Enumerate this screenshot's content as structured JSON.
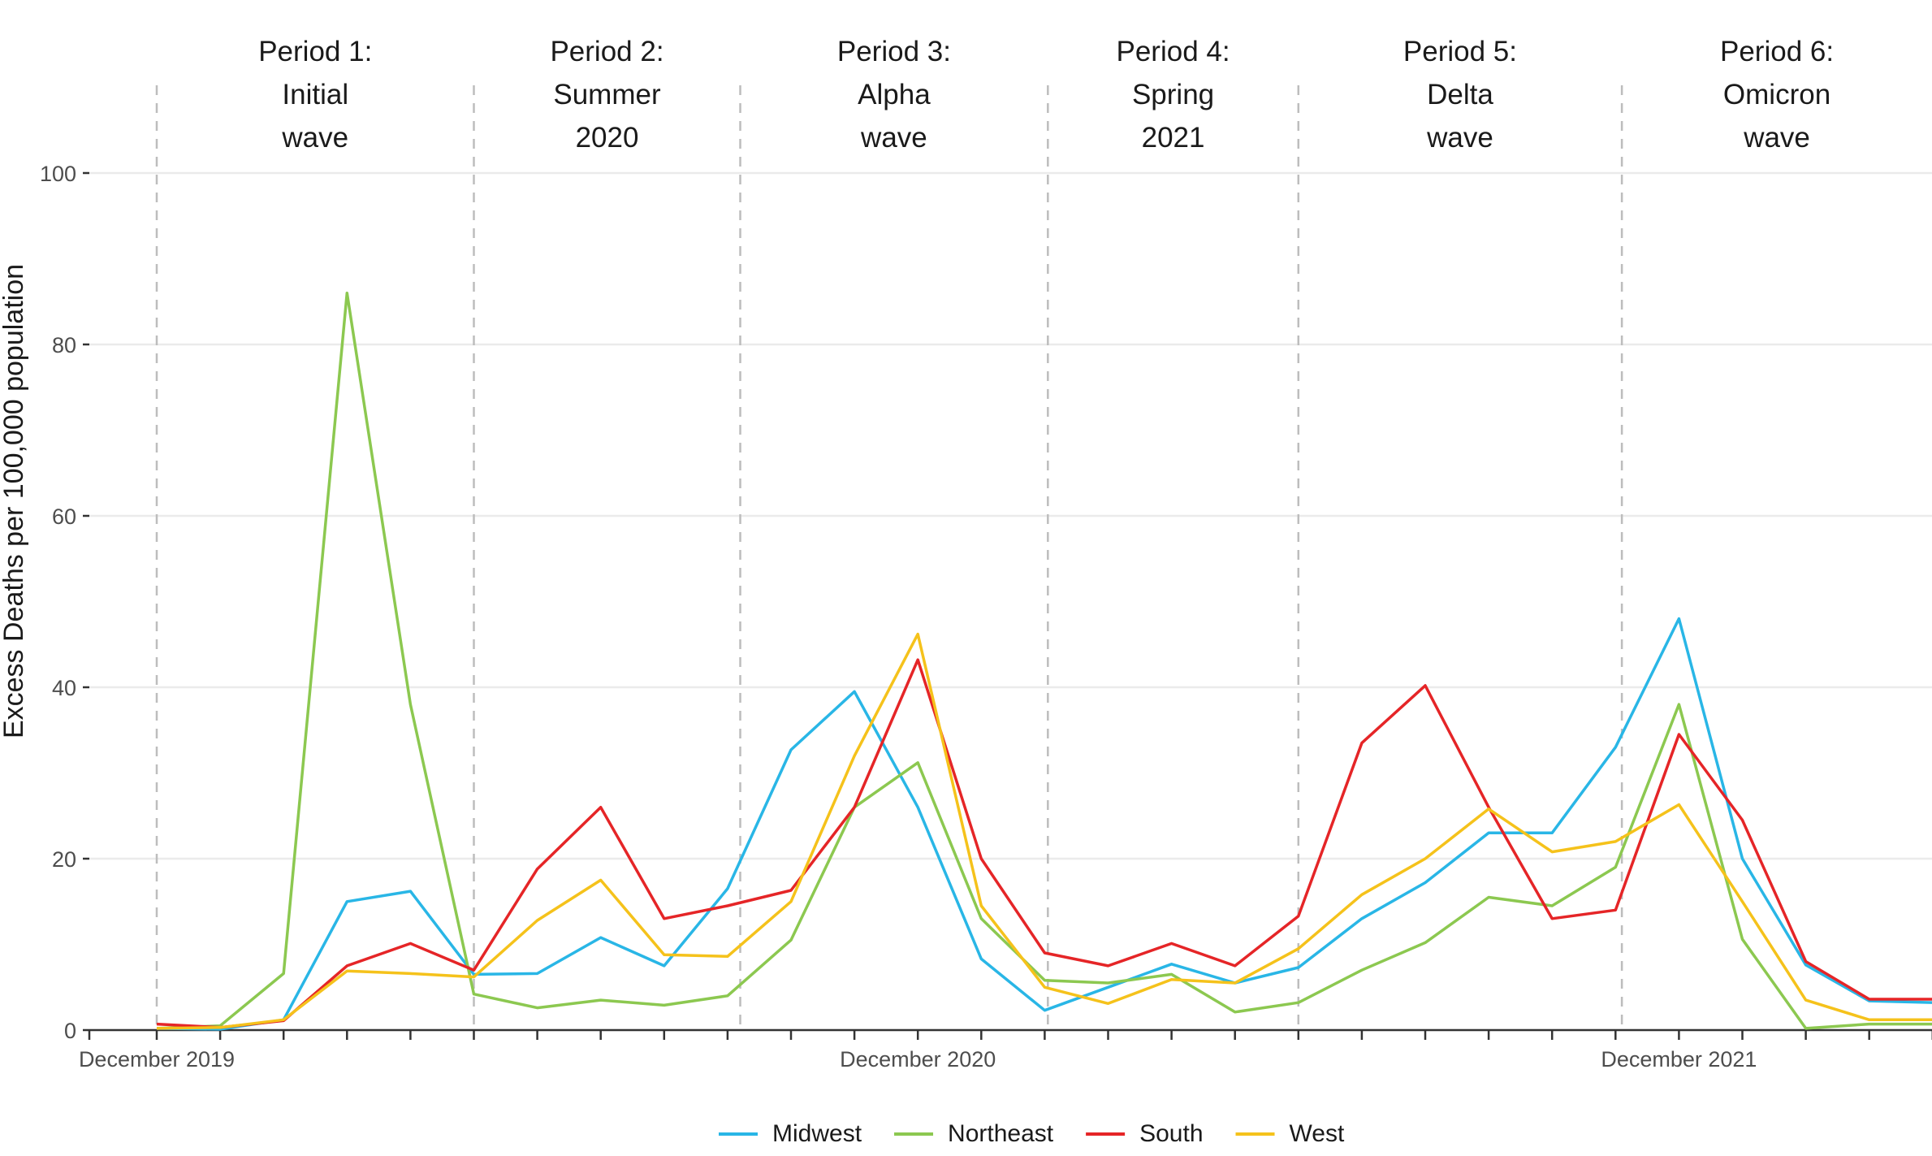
{
  "chart_data": {
    "type": "line",
    "ylabel": "Excess Deaths per 100,000 population",
    "xlabel": "",
    "ylim": [
      0,
      100
    ],
    "y_ticks": [
      0,
      20,
      40,
      60,
      80,
      100
    ],
    "x_tick_labels": [
      {
        "label": "December 2019",
        "month_index": 0
      },
      {
        "label": "December 2020",
        "month_index": 12
      },
      {
        "label": "December 2021",
        "month_index": 24
      }
    ],
    "x_minor_ticks_every_month": true,
    "months": [
      "Dec 2019",
      "Jan 2020",
      "Feb 2020",
      "Mar 2020",
      "Apr 2020",
      "May 2020",
      "Jun 2020",
      "Jul 2020",
      "Aug 2020",
      "Sep 2020",
      "Oct 2020",
      "Nov 2020",
      "Dec 2020",
      "Jan 2021",
      "Feb 2021",
      "Mar 2021",
      "Apr 2021",
      "May 2021",
      "Jun 2021",
      "Jul 2021",
      "Aug 2021",
      "Sep 2021",
      "Oct 2021",
      "Nov 2021",
      "Dec 2021",
      "Jan 2022",
      "Feb 2022",
      "Mar 2022",
      "Apr 2022"
    ],
    "periods": [
      {
        "lines": [
          "Period 1:",
          "Initial",
          "wave"
        ],
        "start_month": 0
      },
      {
        "lines": [
          "Period 2:",
          "Summer",
          "2020"
        ],
        "start_month": 5
      },
      {
        "lines": [
          "Period 3:",
          "Alpha",
          "wave"
        ],
        "start_month": 9.2
      },
      {
        "lines": [
          "Period 4:",
          "Spring",
          "2021"
        ],
        "start_month": 14.05
      },
      {
        "lines": [
          "Period 5:",
          "Delta",
          "wave"
        ],
        "start_month": 18
      },
      {
        "lines": [
          "Period 6:",
          "Omicron",
          "wave"
        ],
        "start_month": 23.1
      }
    ],
    "grid": true,
    "legend_position": "bottom",
    "series": [
      {
        "name": "Midwest",
        "color": "#29b6e6",
        "values": [
          0.2,
          0.1,
          1.2,
          15.0,
          16.2,
          6.5,
          6.6,
          10.8,
          7.5,
          16.5,
          32.7,
          39.5,
          26.0,
          8.3,
          2.3,
          5.0,
          7.7,
          5.5,
          7.3,
          13.0,
          17.2,
          23.0,
          23.0,
          33.0,
          48.0,
          20.0,
          7.6,
          3.4,
          3.2
        ]
      },
      {
        "name": "Northeast",
        "color": "#8cc850",
        "values": [
          0.2,
          0.5,
          6.6,
          86.0,
          38.0,
          4.2,
          2.6,
          3.5,
          2.9,
          4.0,
          10.5,
          26.0,
          31.2,
          13.0,
          5.8,
          5.5,
          6.5,
          2.1,
          3.2,
          7.0,
          10.2,
          15.5,
          14.5,
          19.0,
          38.0,
          10.6,
          0.2,
          0.7,
          0.7
        ]
      },
      {
        "name": "South",
        "color": "#e52527",
        "values": [
          0.7,
          0.3,
          1.1,
          7.5,
          10.1,
          7.0,
          18.8,
          26.0,
          13.0,
          14.5,
          16.3,
          26.0,
          43.2,
          20.0,
          9.0,
          7.5,
          10.1,
          7.5,
          13.3,
          33.5,
          40.2,
          26.0,
          13.0,
          14.0,
          34.5,
          24.5,
          8.0,
          3.6,
          3.6
        ]
      },
      {
        "name": "West",
        "color": "#f5c21b",
        "values": [
          0.2,
          0.3,
          1.2,
          6.9,
          6.6,
          6.2,
          12.8,
          17.5,
          8.8,
          8.6,
          15.0,
          32.0,
          46.2,
          14.5,
          5.0,
          3.1,
          5.9,
          5.5,
          9.5,
          15.8,
          20.0,
          25.8,
          20.8,
          22.0,
          26.3,
          15.0,
          3.5,
          1.2,
          1.2
        ]
      }
    ]
  }
}
